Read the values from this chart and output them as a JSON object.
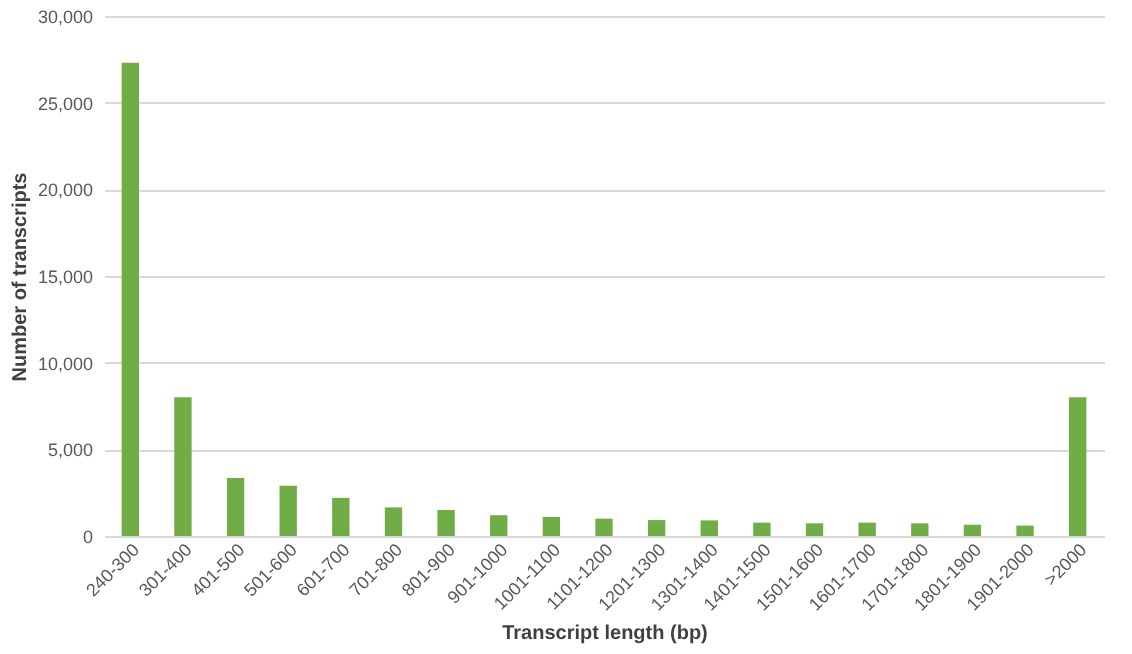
{
  "chart_data": {
    "type": "bar",
    "xlabel": "Transcript length (bp)",
    "ylabel": "Number of transcripts",
    "categories": [
      "240-300",
      "301-400",
      "401-500",
      "501-600",
      "601-700",
      "701-800",
      "801-900",
      "901-1000",
      "1001-1100",
      "1101-1200",
      "1201-1300",
      "1301-1400",
      "1401-1500",
      "1501-1600",
      "1601-1700",
      "1701-1800",
      "1801-1900",
      "1901-2000",
      ">2000"
    ],
    "values": [
      27300,
      8000,
      3350,
      2900,
      2200,
      1650,
      1500,
      1200,
      1100,
      1000,
      920,
      900,
      770,
      730,
      770,
      730,
      650,
      600,
      8000
    ],
    "color": "#70ad47",
    "ylim": [
      0,
      30000
    ],
    "yticks": [
      {
        "value": 0,
        "label": "0"
      },
      {
        "value": 5000,
        "label": "5,000"
      },
      {
        "value": 10000,
        "label": "10,000"
      },
      {
        "value": 15000,
        "label": "15,000"
      },
      {
        "value": 20000,
        "label": "20,000"
      },
      {
        "value": 25000,
        "label": "25,000"
      },
      {
        "value": 30000,
        "label": "30,000"
      }
    ],
    "grid": "y"
  }
}
